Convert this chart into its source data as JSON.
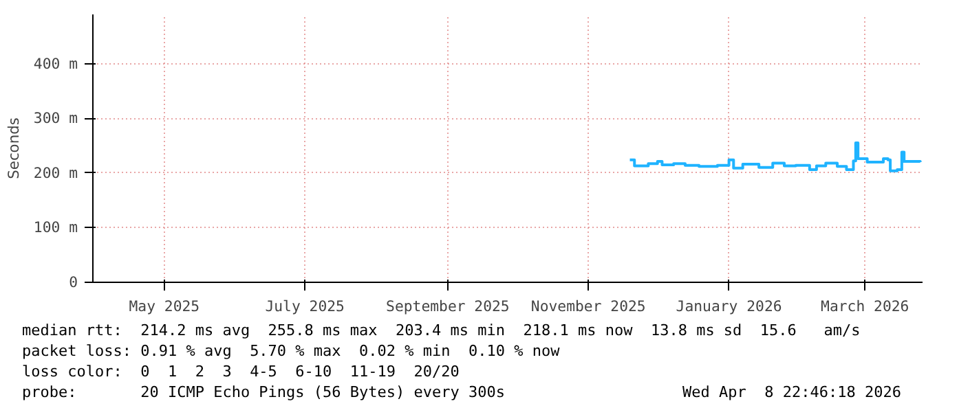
{
  "chart_data": {
    "type": "step",
    "ylabel": "Seconds",
    "x": [
      "2025-11-19",
      "2025-11-21",
      "2025-11-27",
      "2025-12-01",
      "2025-12-03",
      "2025-12-08",
      "2025-12-13",
      "2025-12-19",
      "2025-12-27",
      "2026-01-01",
      "2026-01-03",
      "2026-01-07",
      "2026-01-14",
      "2026-01-20",
      "2026-01-25",
      "2026-01-30",
      "2026-02-05",
      "2026-02-08",
      "2026-02-12",
      "2026-02-17",
      "2026-02-21",
      "2026-02-24",
      "2026-02-25",
      "2026-02-26",
      "2026-03-02",
      "2026-03-09",
      "2026-03-11",
      "2026-03-12",
      "2026-03-15",
      "2026-03-17",
      "2026-03-18",
      "2026-03-25"
    ],
    "series": [
      {
        "color": "#1fb3ff",
        "values": [
          224,
          213,
          217,
          221,
          215,
          217,
          214,
          212,
          214,
          224,
          209,
          216,
          210,
          218,
          213,
          214,
          206,
          213,
          218,
          212,
          206,
          222,
          255,
          226,
          220,
          226,
          224,
          204,
          206,
          238,
          221,
          220
        ]
      }
    ],
    "grid": true,
    "xlim": [
      "2025-03-31",
      "2026-03-26"
    ],
    "xticks": [
      {
        "value": "2025-05-01",
        "label": "May 2025"
      },
      {
        "value": "2025-07-01",
        "label": "July 2025"
      },
      {
        "value": "2025-09-01",
        "label": "September 2025"
      },
      {
        "value": "2025-11-01",
        "label": "November 2025"
      },
      {
        "value": "2026-01-01",
        "label": "January 2026"
      },
      {
        "value": "2026-03-01",
        "label": "March 2026"
      }
    ],
    "ylim": [
      0,
      490
    ],
    "yticks": [
      0,
      {
        "value": 100,
        "label": "100 m"
      },
      {
        "value": 200,
        "label": "200 m"
      },
      {
        "value": 300,
        "label": "300 m"
      },
      {
        "value": 400,
        "label": "400 m"
      }
    ],
    "annotations": [
      "median rtt:  214.2 ms avg  255.8 ms max  203.4 ms min  218.1 ms now  13.8 ms sd  15.6   am/s",
      "packet loss: 0.91 % avg  5.70 % max  0.02 % min  0.10 % now",
      "loss color:  0  1  2  3  4-5  6-10  11-19  20/20",
      "probe:       20 ICMP Echo Pings (56 Bytes) every 300s",
      "Wed Apr  8 22:46:18 2026"
    ]
  }
}
